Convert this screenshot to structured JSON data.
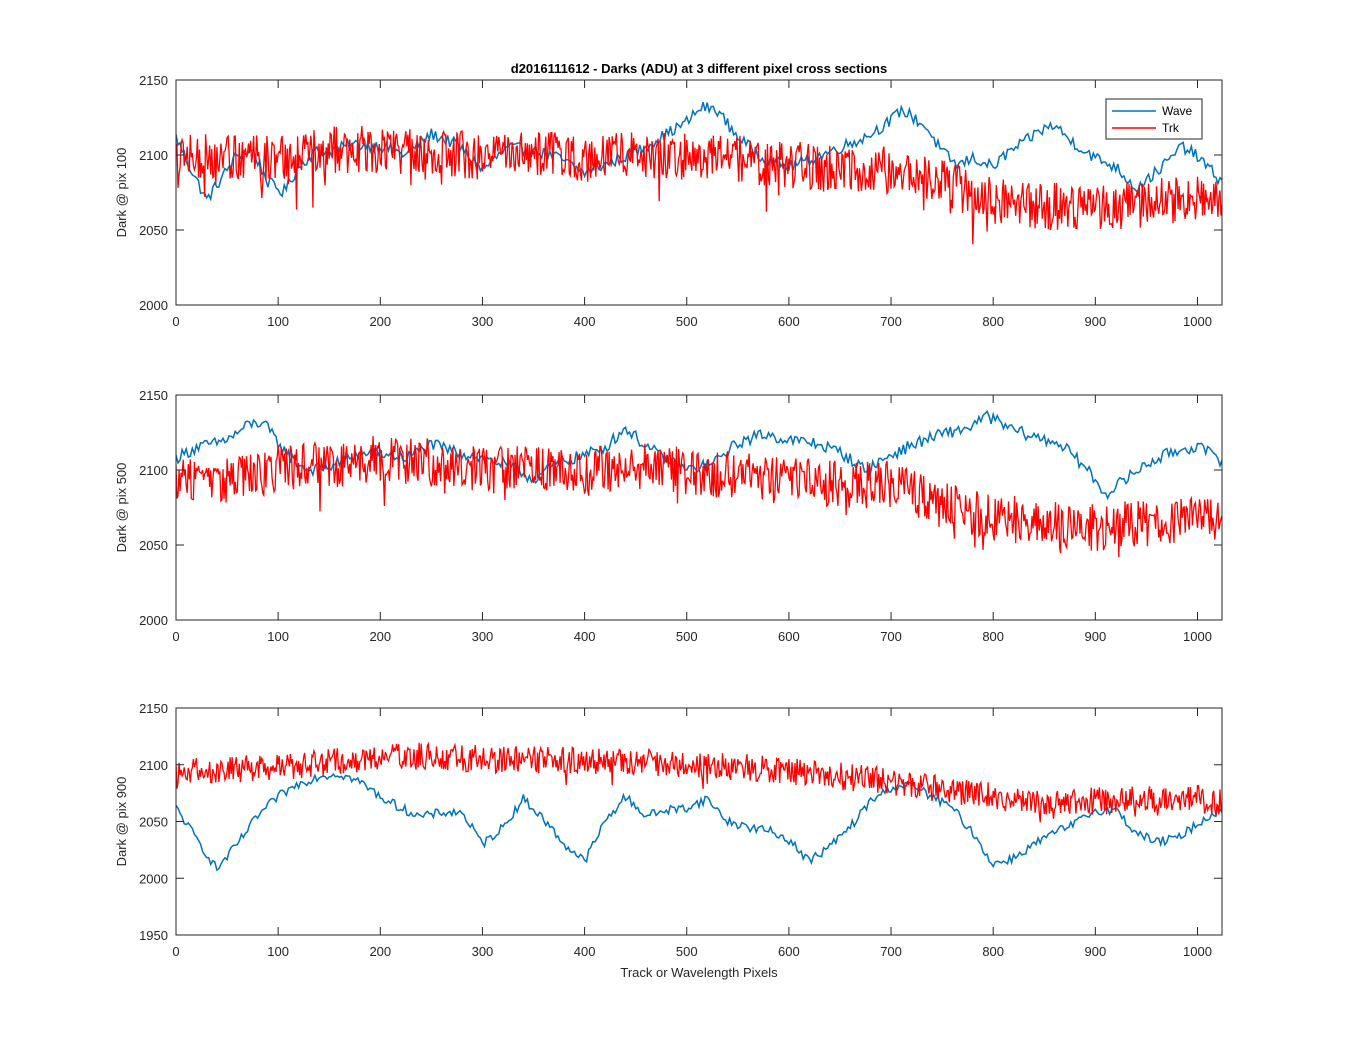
{
  "figure": {
    "title": "d2016111612 - Darks (ADU) at 3 different pixel cross sections",
    "background": "#ffffff",
    "axes_color": "#262626"
  },
  "chart_data": [
    {
      "type": "line",
      "title": "d2016111612 - Darks (ADU) at 3 different pixel cross sections",
      "xlabel": "",
      "ylabel": "Dark @ pix 100",
      "xlim": [
        0,
        1024
      ],
      "ylim": [
        2000,
        2150
      ],
      "xticks": [
        0,
        100,
        200,
        300,
        400,
        500,
        600,
        700,
        800,
        900,
        1000
      ],
      "yticks": [
        2000,
        2050,
        2100,
        2150
      ],
      "grid": false,
      "legend": "top-right",
      "series": [
        {
          "name": "Wave",
          "color": "#0072BD",
          "x": [
            0,
            15,
            30,
            45,
            60,
            75,
            90,
            105,
            120,
            135,
            150,
            175,
            200,
            225,
            250,
            275,
            300,
            325,
            350,
            375,
            400,
            425,
            450,
            475,
            500,
            515,
            530,
            545,
            560,
            575,
            600,
            625,
            650,
            675,
            700,
            710,
            720,
            735,
            750,
            765,
            780,
            800,
            815,
            830,
            845,
            860,
            875,
            900,
            920,
            940,
            955,
            970,
            985,
            1000,
            1024
          ],
          "y": [
            2112,
            2090,
            2070,
            2085,
            2100,
            2103,
            2082,
            2075,
            2092,
            2102,
            2103,
            2107,
            2106,
            2100,
            2114,
            2107,
            2090,
            2105,
            2103,
            2098,
            2088,
            2095,
            2102,
            2112,
            2122,
            2132,
            2130,
            2116,
            2106,
            2098,
            2092,
            2098,
            2105,
            2112,
            2123,
            2130,
            2126,
            2118,
            2102,
            2093,
            2098,
            2092,
            2102,
            2108,
            2116,
            2120,
            2110,
            2098,
            2092,
            2078,
            2086,
            2095,
            2106,
            2099,
            2082
          ]
        },
        {
          "name": "Trk",
          "color": "#FF0000",
          "x": [
            0,
            50,
            100,
            150,
            200,
            250,
            300,
            350,
            400,
            450,
            500,
            550,
            600,
            650,
            700,
            750,
            800,
            850,
            900,
            950,
            1000,
            1024
          ],
          "y": [
            2101,
            2097,
            2098,
            2103,
            2104,
            2102,
            2099,
            2100,
            2098,
            2101,
            2099,
            2097,
            2094,
            2090,
            2090,
            2082,
            2070,
            2066,
            2064,
            2068,
            2072,
            2072
          ],
          "noise_amplitude": 16
        }
      ]
    },
    {
      "type": "line",
      "xlabel": "",
      "ylabel": "Dark @ pix 500",
      "xlim": [
        0,
        1024
      ],
      "ylim": [
        2000,
        2150
      ],
      "xticks": [
        0,
        100,
        200,
        300,
        400,
        500,
        600,
        700,
        800,
        900,
        1000
      ],
      "yticks": [
        2000,
        2050,
        2100,
        2150
      ],
      "grid": false,
      "series": [
        {
          "name": "Wave",
          "color": "#0072BD",
          "x": [
            0,
            20,
            40,
            55,
            70,
            85,
            100,
            115,
            130,
            150,
            175,
            200,
            225,
            250,
            275,
            300,
            325,
            350,
            375,
            400,
            420,
            440,
            460,
            480,
            500,
            525,
            550,
            575,
            600,
            625,
            650,
            675,
            700,
            725,
            750,
            775,
            795,
            815,
            840,
            865,
            890,
            910,
            930,
            950,
            975,
            1000,
            1024
          ],
          "y": [
            2108,
            2115,
            2118,
            2122,
            2130,
            2132,
            2118,
            2106,
            2100,
            2102,
            2110,
            2111,
            2108,
            2117,
            2112,
            2108,
            2103,
            2094,
            2105,
            2110,
            2115,
            2128,
            2116,
            2107,
            2100,
            2104,
            2118,
            2124,
            2120,
            2118,
            2112,
            2100,
            2110,
            2118,
            2124,
            2128,
            2136,
            2128,
            2122,
            2118,
            2102,
            2084,
            2094,
            2104,
            2112,
            2116,
            2106
          ]
        },
        {
          "name": "Trk",
          "color": "#FF0000",
          "x": [
            0,
            50,
            100,
            150,
            200,
            250,
            300,
            350,
            400,
            450,
            500,
            550,
            600,
            650,
            700,
            750,
            800,
            850,
            900,
            950,
            1000,
            1024
          ],
          "y": [
            2095,
            2093,
            2100,
            2104,
            2107,
            2105,
            2100,
            2101,
            2100,
            2102,
            2099,
            2096,
            2092,
            2091,
            2090,
            2076,
            2069,
            2064,
            2062,
            2064,
            2067,
            2066
          ],
          "noise_amplitude": 16
        }
      ]
    },
    {
      "type": "line",
      "xlabel": "Track or Wavelength Pixels",
      "ylabel": "Dark @ pix 900",
      "xlim": [
        0,
        1024
      ],
      "ylim": [
        1950,
        2150
      ],
      "xticks": [
        0,
        100,
        200,
        300,
        400,
        500,
        600,
        700,
        800,
        900,
        1000
      ],
      "yticks": [
        1950,
        2000,
        2050,
        2100,
        2150
      ],
      "grid": false,
      "series": [
        {
          "name": "Wave",
          "color": "#0072BD",
          "x": [
            0,
            20,
            40,
            60,
            80,
            100,
            120,
            140,
            160,
            180,
            200,
            220,
            240,
            260,
            280,
            300,
            320,
            340,
            360,
            380,
            400,
            420,
            440,
            460,
            480,
            500,
            520,
            540,
            560,
            580,
            600,
            620,
            640,
            660,
            680,
            700,
            720,
            740,
            760,
            780,
            800,
            820,
            840,
            860,
            880,
            900,
            920,
            940,
            960,
            980,
            1000,
            1024
          ],
          "y": [
            2062,
            2035,
            2008,
            2030,
            2055,
            2072,
            2083,
            2090,
            2092,
            2085,
            2072,
            2062,
            2054,
            2058,
            2058,
            2030,
            2045,
            2070,
            2052,
            2030,
            2015,
            2050,
            2072,
            2055,
            2060,
            2062,
            2070,
            2050,
            2045,
            2042,
            2034,
            2015,
            2028,
            2045,
            2068,
            2080,
            2082,
            2072,
            2062,
            2040,
            2012,
            2018,
            2030,
            2040,
            2048,
            2060,
            2060,
            2040,
            2032,
            2035,
            2048,
            2062
          ]
        },
        {
          "name": "Trk",
          "color": "#FF0000",
          "x": [
            0,
            50,
            100,
            150,
            200,
            250,
            300,
            350,
            400,
            450,
            500,
            550,
            600,
            650,
            700,
            750,
            800,
            850,
            900,
            950,
            1000,
            1024
          ],
          "y": [
            2094,
            2096,
            2098,
            2102,
            2106,
            2108,
            2105,
            2104,
            2104,
            2103,
            2100,
            2098,
            2095,
            2090,
            2085,
            2078,
            2072,
            2068,
            2068,
            2070,
            2070,
            2066
          ],
          "noise_amplitude": 12
        }
      ]
    }
  ]
}
